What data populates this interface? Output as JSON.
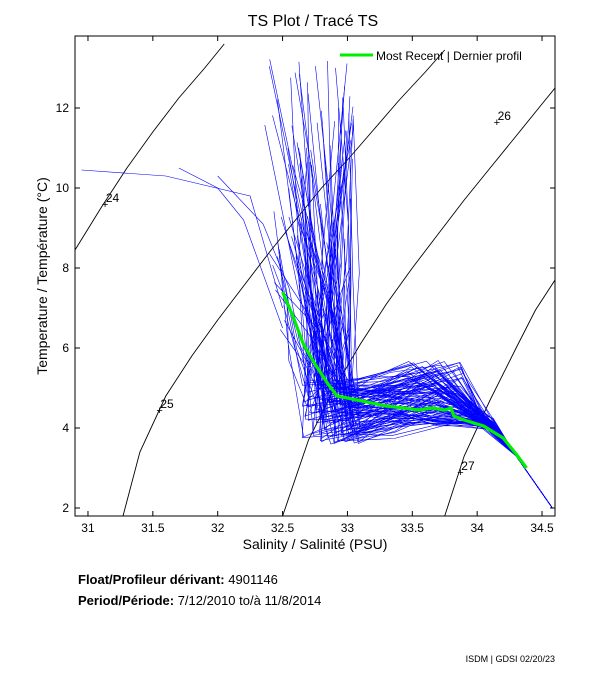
{
  "chart_data": {
    "type": "line",
    "title": "TS Plot / Tracé TS",
    "xlabel": "Salinity / Salinité (PSU)",
    "ylabel": "Temperature / Température (°C)",
    "xlim": [
      30.9,
      34.6
    ],
    "ylim": [
      1.8,
      13.8
    ],
    "xticks": [
      31,
      31.5,
      32,
      32.5,
      33,
      33.5,
      34,
      34.5
    ],
    "xtick_labels": [
      "31",
      "31.5",
      "32",
      "32.5",
      "33",
      "33.5",
      "34",
      "34.5"
    ],
    "yticks": [
      2,
      4,
      6,
      8,
      10,
      12
    ],
    "ytick_labels": [
      "2",
      "4",
      "6",
      "8",
      "10",
      "12"
    ],
    "grid": false,
    "legend": {
      "position": "top-right",
      "entries": [
        {
          "label": "Most Recent | Dernier profil",
          "color": "#00ee00"
        }
      ]
    },
    "density_contours": [
      {
        "label": "24",
        "label_at": [
          31.13,
          9.6
        ],
        "points": [
          [
            30.9,
            8.45
          ],
          [
            31.1,
            9.5
          ],
          [
            31.3,
            10.5
          ],
          [
            31.5,
            11.4
          ],
          [
            31.7,
            12.25
          ],
          [
            31.9,
            13.0
          ],
          [
            32.05,
            13.6
          ]
        ]
      },
      {
        "label": "25",
        "label_at": [
          31.55,
          4.45
        ],
        "points": [
          [
            31.27,
            1.8
          ],
          [
            31.4,
            3.4
          ],
          [
            31.6,
            4.8
          ],
          [
            31.8,
            5.8
          ],
          [
            32.0,
            6.7
          ],
          [
            32.2,
            7.55
          ],
          [
            32.4,
            8.4
          ],
          [
            32.6,
            9.2
          ],
          [
            32.8,
            10.0
          ],
          [
            33.0,
            10.7
          ],
          [
            33.2,
            11.45
          ],
          [
            33.4,
            12.2
          ],
          [
            33.6,
            12.9
          ],
          [
            33.75,
            13.45
          ]
        ]
      },
      {
        "label": "26",
        "label_at": [
          34.15,
          11.65
        ],
        "points": [
          [
            32.5,
            1.8
          ],
          [
            32.7,
            3.7
          ],
          [
            32.9,
            5.0
          ],
          [
            33.1,
            6.1
          ],
          [
            33.3,
            7.1
          ],
          [
            33.5,
            8.0
          ],
          [
            33.7,
            8.85
          ],
          [
            33.9,
            9.7
          ],
          [
            34.1,
            10.5
          ],
          [
            34.3,
            11.3
          ],
          [
            34.5,
            12.1
          ],
          [
            34.6,
            12.5
          ]
        ]
      },
      {
        "label": "27",
        "label_at": [
          33.87,
          2.9
        ],
        "points": [
          [
            33.75,
            1.8
          ],
          [
            33.9,
            3.3
          ],
          [
            34.1,
            4.7
          ],
          [
            34.3,
            6.0
          ],
          [
            34.45,
            6.95
          ],
          [
            34.6,
            7.7
          ]
        ]
      }
    ],
    "series": [
      {
        "name": "Most Recent | Dernier profil",
        "color": "#00ee00",
        "x": [
          32.5,
          32.58,
          32.66,
          32.75,
          32.85,
          32.92,
          33.0,
          33.3,
          33.55,
          33.65,
          33.75,
          33.8,
          33.82,
          33.9,
          34.05,
          34.2,
          34.3,
          34.38
        ],
        "y": [
          7.4,
          6.8,
          6.1,
          5.6,
          5.1,
          4.8,
          4.75,
          4.55,
          4.45,
          4.5,
          4.45,
          4.5,
          4.3,
          4.2,
          4.05,
          3.75,
          3.35,
          3.0
        ]
      }
    ],
    "historical_profiles_color": "#0000ff"
  },
  "info": {
    "float_label": "Float/Profileur dérivant:",
    "float_id": "4901146",
    "period_label": "Period/Période:",
    "period_value": "7/12/2010  to/à  11/8/2014"
  },
  "footer": "ISDM | GDSI  02/20/23"
}
